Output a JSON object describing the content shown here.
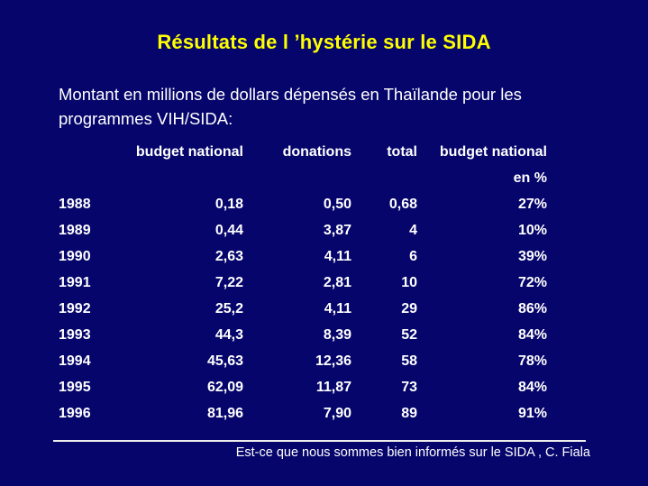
{
  "slide": {
    "title": "Résultats de l ’hystérie sur le SIDA",
    "subtitle_line1": "Montant en millions de dollars dépensés en Thaïlande pour les",
    "subtitle_line2": "programmes VIH/SIDA:",
    "footer_citation": "Est-ce que nous sommes bien informés sur le SIDA , C. Fiala"
  },
  "colors": {
    "background": "#05056B",
    "title_yellow": "#FFFF00",
    "text_white": "#FFFFFF"
  },
  "chart_data": {
    "type": "table",
    "header": {
      "col_year": "",
      "col_budget": "budget national",
      "col_donations": "donations",
      "col_total": "total",
      "col_pct_line1": "budget national",
      "col_pct_line2": "en %"
    },
    "rows": [
      {
        "year": "1988",
        "budget": "0,18",
        "donations": "0,50",
        "total": "0,68",
        "pct": "27%"
      },
      {
        "year": "1989",
        "budget": "0,44",
        "donations": "3,87",
        "total": "4",
        "pct": "10%"
      },
      {
        "year": "1990",
        "budget": "2,63",
        "donations": "4,11",
        "total": "6",
        "pct": "39%"
      },
      {
        "year": "1991",
        "budget": "7,22",
        "donations": "2,81",
        "total": "10",
        "pct": "72%"
      },
      {
        "year": "1992",
        "budget": "25,2",
        "donations": "4,11",
        "total": "29",
        "pct": "86%"
      },
      {
        "year": "1993",
        "budget": "44,3",
        "donations": "8,39",
        "total": "52",
        "pct": "84%"
      },
      {
        "year": "1994",
        "budget": "45,63",
        "donations": "12,36",
        "total": "58",
        "pct": "78%"
      },
      {
        "year": "1995",
        "budget": "62,09",
        "donations": "11,87",
        "total": "73",
        "pct": "84%"
      },
      {
        "year": "1996",
        "budget": "81,96",
        "donations": "7,90",
        "total": "89",
        "pct": "91%"
      }
    ]
  }
}
